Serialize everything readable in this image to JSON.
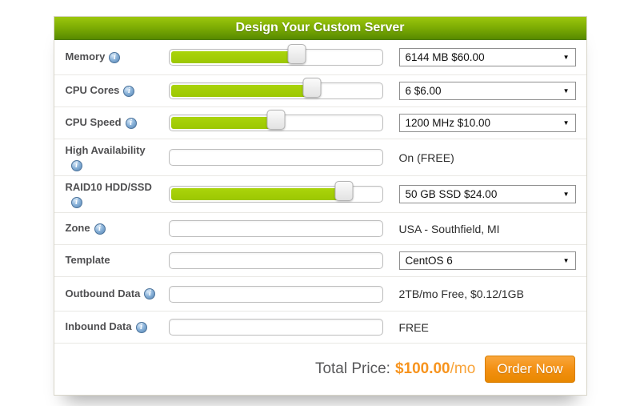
{
  "header": {
    "title": "Design Your Custom Server"
  },
  "rows": [
    {
      "label": "Memory",
      "slider_percent": 60,
      "value": "6144 MB $60.00",
      "value_type": "select"
    },
    {
      "label": "CPU Cores",
      "slider_percent": 67,
      "value": "6 $6.00",
      "value_type": "select"
    },
    {
      "label": "CPU Speed",
      "slider_percent": 50,
      "value": "1200 MHz $10.00",
      "value_type": "select"
    },
    {
      "label": "High Availability",
      "slider_percent": null,
      "value": "On (FREE)",
      "value_type": "text"
    },
    {
      "label": "RAID10 HDD/SSD",
      "slider_percent": 82,
      "value": "50 GB SSD $24.00",
      "value_type": "select"
    },
    {
      "label": "Zone",
      "slider_percent": null,
      "value": "USA - Southfield, MI",
      "value_type": "text"
    },
    {
      "label": "Template",
      "slider_percent": null,
      "value": "CentOS 6",
      "value_type": "select"
    },
    {
      "label": "Outbound Data",
      "slider_percent": null,
      "value": "2TB/mo Free, $0.12/1GB",
      "value_type": "text"
    },
    {
      "label": "Inbound Data",
      "slider_percent": null,
      "value": "FREE",
      "value_type": "text"
    }
  ],
  "footer": {
    "total_label": "Total Price:",
    "price": "$100.00",
    "period": "/mo",
    "order_button": "Order Now"
  },
  "icons": {
    "info": "info-icon",
    "dropdown_arrow": "▼"
  },
  "colors": {
    "header_green_top": "#9cc70d",
    "header_green_bottom": "#578a00",
    "slider_fill_green": "#a2cf06",
    "price_orange": "#f7941e",
    "button_orange": "#f39012"
  }
}
